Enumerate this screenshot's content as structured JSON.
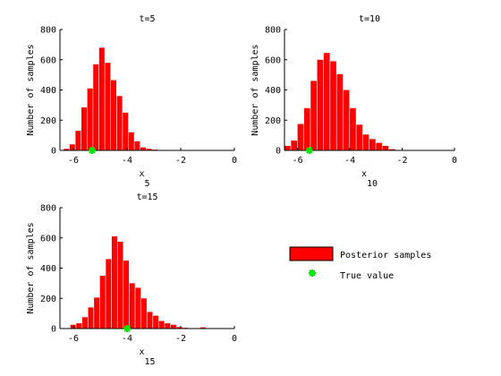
{
  "chart_data": [
    {
      "type": "bar",
      "title": "t=5",
      "xlabel": "x",
      "xlabel_sub": "5",
      "ylabel": "Number of samples",
      "xlim": [
        -6.5,
        0
      ],
      "ylim": [
        0,
        800
      ],
      "xticks": [
        -6,
        -4,
        -2,
        0
      ],
      "yticks": [
        0,
        200,
        400,
        600,
        800
      ],
      "bin_width": 0.22,
      "bin_centers": [
        -6.25,
        -6.03,
        -5.81,
        -5.59,
        -5.37,
        -5.15,
        -4.93,
        -4.71,
        -4.49,
        -4.27,
        -4.05,
        -3.83,
        -3.61,
        -3.39,
        -3.17,
        -2.95,
        -2.73,
        -2.51,
        -2.29,
        -2.07,
        -1.85,
        -1.63,
        -1.41,
        -1.19,
        -0.97,
        -0.75,
        -0.53,
        -0.31,
        -0.09
      ],
      "values": [
        10,
        40,
        130,
        285,
        410,
        570,
        680,
        580,
        465,
        360,
        250,
        120,
        60,
        20,
        10,
        5,
        3,
        1,
        0,
        0,
        0,
        0,
        0,
        0,
        1,
        1,
        1,
        1,
        1
      ],
      "true_value": {
        "x": -5.3,
        "y": 0
      }
    },
    {
      "type": "bar",
      "title": "t=10",
      "xlabel": "x",
      "xlabel_sub": "10",
      "ylabel": "Number of samples",
      "xlim": [
        -6.5,
        0
      ],
      "ylim": [
        0,
        800
      ],
      "xticks": [
        -6,
        -4,
        -2,
        0
      ],
      "yticks": [
        0,
        200,
        400,
        600,
        800
      ],
      "bin_width": 0.25,
      "bin_centers": [
        -6.375,
        -6.125,
        -5.875,
        -5.625,
        -5.375,
        -5.125,
        -4.875,
        -4.625,
        -4.375,
        -4.125,
        -3.875,
        -3.625,
        -3.375,
        -3.125,
        -2.875,
        -2.625,
        -2.375,
        -2.125,
        -1.875,
        -1.625,
        -1.375,
        -1.125,
        -0.875,
        -0.625,
        -0.375,
        -0.125
      ],
      "values": [
        30,
        65,
        175,
        280,
        460,
        600,
        645,
        590,
        505,
        400,
        280,
        170,
        105,
        75,
        50,
        30,
        8,
        3,
        0,
        0,
        0,
        0,
        1,
        1,
        1,
        1
      ],
      "true_value": {
        "x": -5.55,
        "y": 0
      }
    },
    {
      "type": "bar",
      "title": "t=15",
      "xlabel": "x",
      "xlabel_sub": "15",
      "ylabel": "Number of samples",
      "xlim": [
        -6.5,
        0
      ],
      "ylim": [
        0,
        800
      ],
      "xticks": [
        -6,
        -4,
        -2,
        0
      ],
      "yticks": [
        0,
        200,
        400,
        600,
        800
      ],
      "bin_width": 0.22,
      "bin_centers": [
        -6.0,
        -5.78,
        -5.56,
        -5.34,
        -5.12,
        -4.9,
        -4.68,
        -4.46,
        -4.24,
        -4.02,
        -3.8,
        -3.58,
        -3.36,
        -3.14,
        -2.92,
        -2.7,
        -2.48,
        -2.26,
        -2.04,
        -1.82,
        -1.6,
        -1.38,
        -1.16,
        -0.94,
        -0.72,
        -0.5,
        -0.28,
        -0.06
      ],
      "values": [
        25,
        35,
        75,
        140,
        205,
        350,
        460,
        610,
        575,
        450,
        300,
        270,
        200,
        110,
        85,
        50,
        35,
        25,
        10,
        5,
        3,
        0,
        8,
        0,
        1,
        1,
        1,
        1
      ],
      "true_value": {
        "x": -4.0,
        "y": 0
      }
    }
  ],
  "legend": {
    "items": [
      {
        "label": "Posterior samples",
        "kind": "bar"
      },
      {
        "label": "True value",
        "kind": "marker"
      }
    ]
  },
  "colors": {
    "bar": "#ff0000",
    "true_value": "#00e600"
  }
}
